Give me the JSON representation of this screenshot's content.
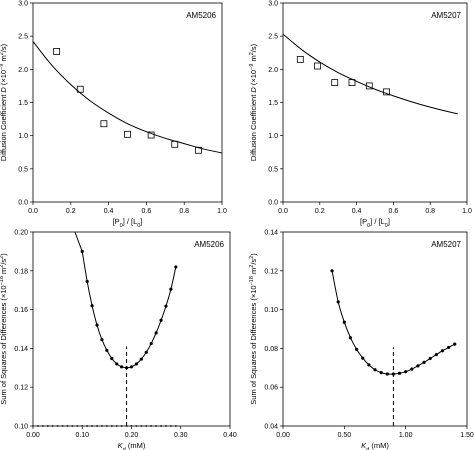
{
  "chart_data": [
    {
      "type": "scatter",
      "panel_label": "AM5206",
      "xlabel_parts": [
        "[P",
        "0",
        "] / [L",
        "0",
        "]"
      ],
      "ylabel_parts": [
        "Diffusion Coefficient ",
        "D",
        " (×10",
        "−9",
        " m",
        "2",
        "/s)"
      ],
      "xlim": [
        0,
        1.0
      ],
      "ylim": [
        0,
        3.0
      ],
      "x_ticks": [
        "0.0",
        "0.2",
        "0.4",
        "0.6",
        "0.8",
        "1.0"
      ],
      "y_ticks": [
        "0.0",
        "0.5",
        "1.0",
        "1.5",
        "2.0",
        "2.5",
        "3.0"
      ],
      "series": [
        {
          "style": "open-square",
          "x": [
            0.125,
            0.25,
            0.375,
            0.5,
            0.625,
            0.75,
            0.875
          ],
          "y": [
            2.27,
            1.7,
            1.18,
            1.02,
            1.01,
            0.87,
            0.78
          ]
        },
        {
          "style": "fit-line",
          "x": [
            0,
            0.1,
            0.2,
            0.3,
            0.4,
            0.5,
            0.6,
            0.7,
            0.8,
            0.9,
            1.0
          ],
          "y": [
            2.42,
            2.06,
            1.77,
            1.53,
            1.34,
            1.18,
            1.06,
            0.96,
            0.88,
            0.8,
            0.74
          ]
        }
      ]
    },
    {
      "type": "scatter",
      "panel_label": "AM5207",
      "xlabel_parts": [
        "[P",
        "0",
        "] / [L",
        "0",
        "]"
      ],
      "ylabel_parts": [
        "Diffusion Coefficient ",
        "D",
        " (×10",
        "−9",
        " m",
        "2",
        "/s)"
      ],
      "xlim": [
        0,
        1.0
      ],
      "ylim": [
        0,
        3.0
      ],
      "x_ticks": [
        "0.0",
        "0.2",
        "0.4",
        "0.6",
        "0.8",
        "1.0"
      ],
      "y_ticks": [
        "0.0",
        "0.5",
        "1.0",
        "1.5",
        "2.0",
        "2.5",
        "3.0"
      ],
      "series": [
        {
          "style": "open-square",
          "x": [
            0.094,
            0.188,
            0.281,
            0.375,
            0.469,
            0.563
          ],
          "y": [
            2.15,
            2.05,
            1.8,
            1.8,
            1.75,
            1.66
          ]
        },
        {
          "style": "fit-line",
          "x": [
            0,
            0.1,
            0.2,
            0.3,
            0.4,
            0.5,
            0.6,
            0.7,
            0.8,
            0.9,
            0.95
          ],
          "y": [
            2.53,
            2.3,
            2.11,
            1.95,
            1.82,
            1.7,
            1.6,
            1.51,
            1.43,
            1.36,
            1.33
          ]
        }
      ]
    },
    {
      "type": "line",
      "panel_label": "AM5206",
      "xlabel_parts": [
        "K",
        "d",
        " (mM)"
      ],
      "ylabel_parts": [
        "Sum of Squares of Differences (×10",
        "−18",
        " m",
        "2",
        "/s",
        "2",
        ")"
      ],
      "xlim": [
        0,
        0.4
      ],
      "ylim": [
        0.1,
        0.2
      ],
      "x_ticks": [
        "0.00",
        "0.10",
        "0.20",
        "0.30",
        "0.40"
      ],
      "y_ticks": [
        "0.10",
        "0.12",
        "0.14",
        "0.16",
        "0.18",
        "0.20"
      ],
      "series": [
        {
          "style": "line-dots",
          "x": [
            0.1,
            0.11,
            0.12,
            0.13,
            0.14,
            0.15,
            0.16,
            0.17,
            0.18,
            0.19,
            0.2,
            0.21,
            0.22,
            0.23,
            0.24,
            0.25,
            0.26,
            0.27,
            0.28,
            0.29
          ],
          "y": [
            0.19,
            0.1745,
            0.162,
            0.152,
            0.1445,
            0.139,
            0.1348,
            0.132,
            0.1305,
            0.13,
            0.1305,
            0.132,
            0.1345,
            0.138,
            0.1425,
            0.148,
            0.1545,
            0.1618,
            0.1705,
            0.182
          ]
        },
        {
          "style": "line",
          "x": [
            0.085,
            0.1
          ],
          "y": [
            0.2,
            0.19
          ]
        },
        {
          "style": "baseline-dots",
          "x": [
            0,
            0.01,
            0.02,
            0.03,
            0.04,
            0.05,
            0.06,
            0.07,
            0.08,
            0.09,
            0.1,
            0.11,
            0.12,
            0.13,
            0.14,
            0.15,
            0.16,
            0.17,
            0.18,
            0.19,
            0.2,
            0.21,
            0.22,
            0.23,
            0.24,
            0.25,
            0.26,
            0.27,
            0.28,
            0.29
          ],
          "y": [
            0.1,
            0.1,
            0.1,
            0.1,
            0.1,
            0.1,
            0.1,
            0.1,
            0.1,
            0.1,
            0.1,
            0.1,
            0.1,
            0.1,
            0.1,
            0.1,
            0.1,
            0.1,
            0.1,
            0.1,
            0.1,
            0.1,
            0.1,
            0.1,
            0.1,
            0.1,
            0.1,
            0.1,
            0.1,
            0.1
          ]
        },
        {
          "style": "dashed-vline",
          "x": [
            0.19,
            0.19
          ],
          "y": [
            0.1,
            0.141
          ]
        }
      ]
    },
    {
      "type": "line",
      "panel_label": "AM5207",
      "xlabel_parts": [
        "K",
        "d",
        " (mM)"
      ],
      "ylabel_parts": [
        "Sum of Squares of Differences (×10",
        "−18",
        " m",
        "2",
        "/s",
        "2",
        ")"
      ],
      "xlim": [
        0,
        1.5
      ],
      "ylim": [
        0.04,
        0.14
      ],
      "x_ticks": [
        "0.00",
        "0.50",
        "1.00",
        "1.50"
      ],
      "y_ticks": [
        "0.04",
        "0.06",
        "0.08",
        "0.10",
        "0.12",
        "0.14"
      ],
      "series": [
        {
          "style": "line-dots",
          "x": [
            0.4,
            0.45,
            0.5,
            0.55,
            0.6,
            0.65,
            0.7,
            0.75,
            0.8,
            0.85,
            0.9,
            0.95,
            1.0,
            1.05,
            1.1,
            1.15,
            1.2,
            1.25,
            1.3,
            1.35,
            1.4
          ],
          "y": [
            0.12,
            0.104,
            0.0935,
            0.0855,
            0.0795,
            0.075,
            0.0715,
            0.069,
            0.0675,
            0.0668,
            0.0668,
            0.0672,
            0.068,
            0.0693,
            0.071,
            0.0728,
            0.0748,
            0.0768,
            0.0788,
            0.0805,
            0.0822
          ]
        },
        {
          "style": "dashed-vline",
          "x": [
            0.9,
            0.9
          ],
          "y": [
            0.04,
            0.0805
          ]
        }
      ]
    }
  ]
}
